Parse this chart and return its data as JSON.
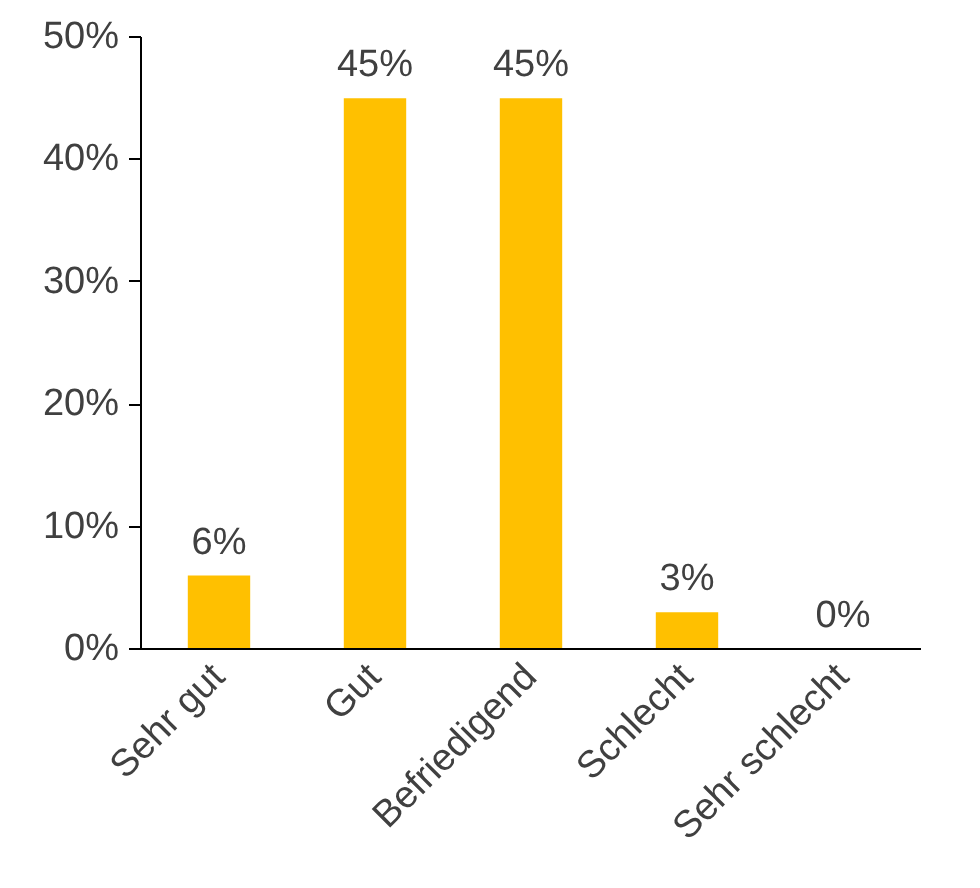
{
  "chart_data": {
    "type": "bar",
    "categories": [
      "Sehr gut",
      "Gut",
      "Befriedigend",
      "Schlecht",
      "Sehr schlecht"
    ],
    "values": [
      6,
      45,
      45,
      3,
      0
    ],
    "value_labels": [
      "6%",
      "45%",
      "45%",
      "3%",
      "0%"
    ],
    "color": "#ffc000",
    "ylim": [
      0,
      50
    ],
    "yticks": [
      {
        "value": 0,
        "label": "0%"
      },
      {
        "value": 10,
        "label": "10%"
      },
      {
        "value": 20,
        "label": "20%"
      },
      {
        "value": 30,
        "label": "30%"
      },
      {
        "value": 40,
        "label": "40%"
      },
      {
        "value": 50,
        "label": "50%"
      }
    ],
    "grid": false
  }
}
